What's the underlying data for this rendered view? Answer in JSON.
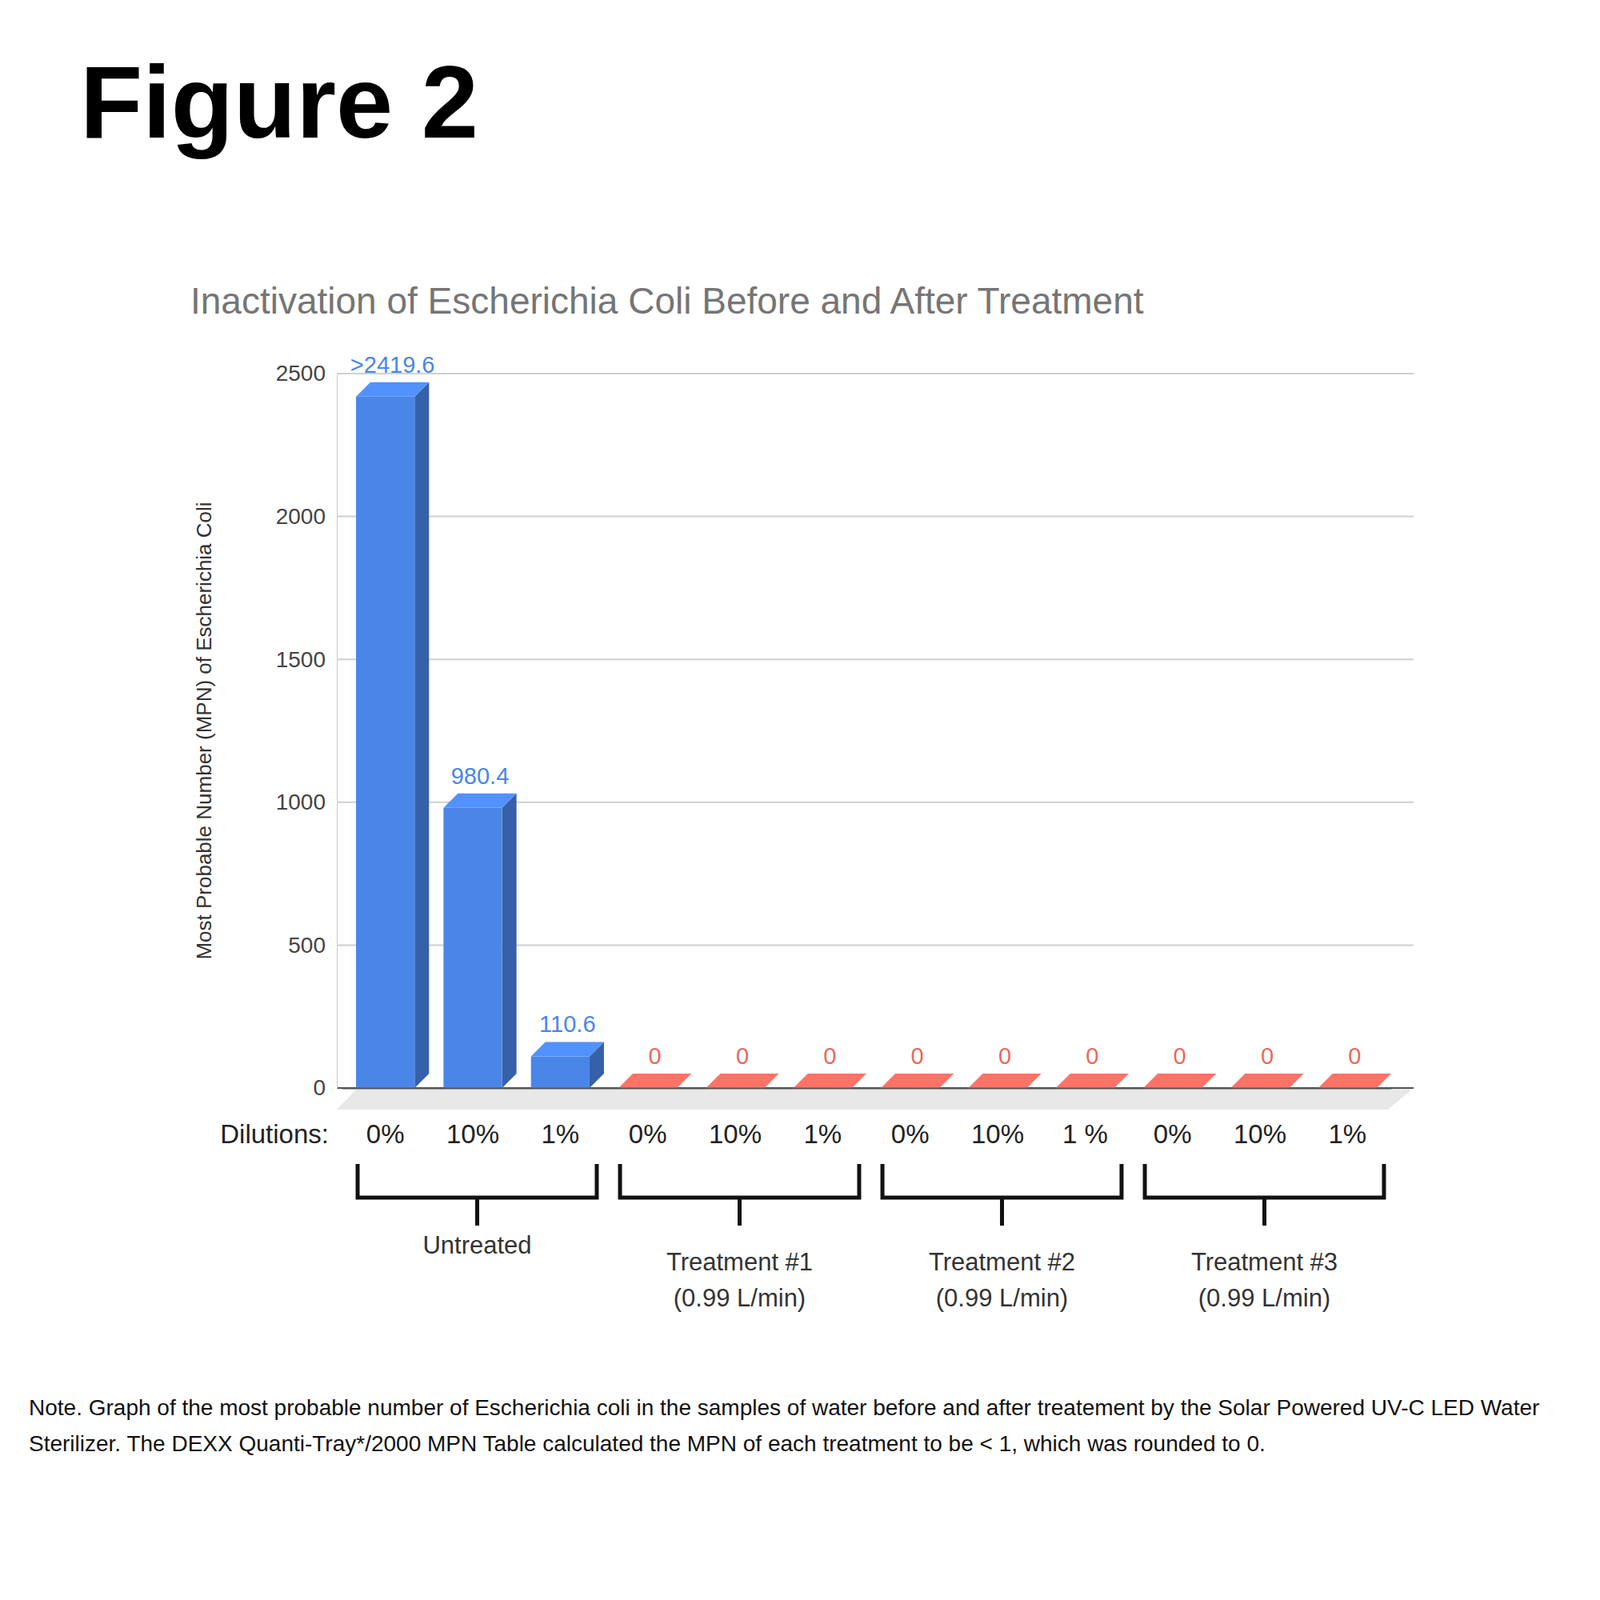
{
  "figure": "Figure 2",
  "chart_data": {
    "type": "bar",
    "title": "Inactivation of Escherichia Coli Before and After Treatment",
    "x_label": "Dilutions:",
    "y_label": "Most Probable Number (MPN) of Escherichia Coli",
    "categories": [
      "0%",
      "10%",
      "1%",
      "0%",
      "10%",
      "1%",
      "0%",
      "10%",
      "1 %",
      "0%",
      "10%",
      "1%"
    ],
    "values": [
      2419.6,
      980.4,
      110.6,
      0,
      0,
      0,
      0,
      0,
      0,
      0,
      0,
      0
    ],
    "value_labels": [
      ">2419.6",
      "980.4",
      "110.6",
      "0",
      "0",
      "0",
      "0",
      "0",
      "0",
      "0",
      "0",
      "0"
    ],
    "colors": [
      "#4a86e8",
      "#4a86e8",
      "#4a86e8",
      "#e8695e",
      "#e8695e",
      "#e8695e",
      "#e8695e",
      "#e8695e",
      "#e8695e",
      "#e8695e",
      "#e8695e",
      "#e8695e"
    ],
    "groups": [
      {
        "label": "Untreated"
      },
      {
        "label": "Treatment #1",
        "detail": "(0.99 L/min)"
      },
      {
        "label": "Treatment #2",
        "detail": "(0.99 L/min)"
      },
      {
        "label": "Treatment #3",
        "detail": "(0.99 L/min)"
      }
    ],
    "ylim": [
      0,
      2500
    ],
    "yticks": [
      0,
      500,
      1000,
      1500,
      2000,
      2500
    ],
    "grid": true,
    "data_labels": true
  },
  "note": "Note. Graph of the most probable number of Escherichia coli in the samples of water before and after treatement by the Solar Powered UV-C LED Water Sterilizer. The DEXX Quanti-Tray*/2000 MPN Table calculated the MPN of each treatment to be < 1, which was rounded to 0."
}
